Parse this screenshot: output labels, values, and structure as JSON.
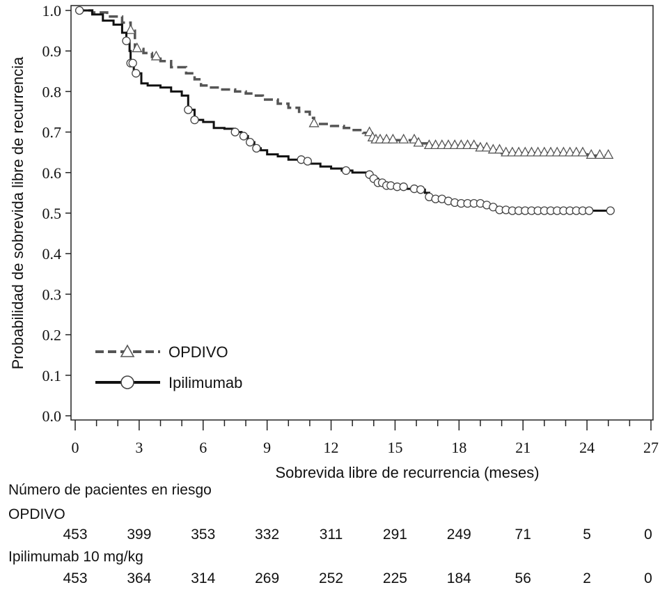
{
  "chart_data": {
    "type": "line",
    "xlabel": "Sobrevida libre de recurrencia (meses)",
    "ylabel": "Probabilidad de sobrevida libre de recurrencia",
    "xlim": [
      0,
      27
    ],
    "ylim": [
      0.0,
      1.0
    ],
    "x_ticks": [
      0,
      3,
      6,
      9,
      12,
      15,
      18,
      21,
      24,
      27
    ],
    "y_ticks": [
      "0.0",
      "0.1",
      "0.2",
      "0.3",
      "0.4",
      "0.5",
      "0.6",
      "0.7",
      "0.8",
      "0.9",
      "1.0"
    ],
    "grid": false,
    "legend_position": "bottom-left",
    "series": [
      {
        "name": "OPDIVO",
        "color": "#555555",
        "line_style": "dashed",
        "marker": "triangle",
        "steps": [
          [
            0,
            1.0
          ],
          [
            0.8,
            0.995
          ],
          [
            1.5,
            0.985
          ],
          [
            2.2,
            0.97
          ],
          [
            2.6,
            0.95
          ],
          [
            2.8,
            0.905
          ],
          [
            3.2,
            0.895
          ],
          [
            3.6,
            0.885
          ],
          [
            4.0,
            0.875
          ],
          [
            4.5,
            0.86
          ],
          [
            5.2,
            0.845
          ],
          [
            5.6,
            0.83
          ],
          [
            5.9,
            0.815
          ],
          [
            6.3,
            0.81
          ],
          [
            6.8,
            0.805
          ],
          [
            7.5,
            0.8
          ],
          [
            8.0,
            0.795
          ],
          [
            8.4,
            0.79
          ],
          [
            8.8,
            0.78
          ],
          [
            9.5,
            0.77
          ],
          [
            10.0,
            0.76
          ],
          [
            10.5,
            0.75
          ],
          [
            11.0,
            0.735
          ],
          [
            11.2,
            0.72
          ],
          [
            12.0,
            0.715
          ],
          [
            12.6,
            0.71
          ],
          [
            13.0,
            0.705
          ],
          [
            13.5,
            0.698
          ],
          [
            13.9,
            0.685
          ],
          [
            14.1,
            0.68
          ],
          [
            16.0,
            0.672
          ],
          [
            16.5,
            0.666
          ],
          [
            19.0,
            0.66
          ],
          [
            19.5,
            0.655
          ],
          [
            20.0,
            0.648
          ],
          [
            23.9,
            0.645
          ],
          [
            24.2,
            0.642
          ],
          [
            25.0,
            0.642
          ]
        ],
        "censored_x": [
          2.6,
          2.9,
          3.8,
          11.2,
          13.8,
          13.95,
          14.1,
          14.3,
          14.6,
          14.9,
          15.4,
          15.9,
          16.1,
          16.6,
          16.9,
          17.2,
          17.5,
          17.8,
          18.1,
          18.4,
          18.7,
          19.0,
          19.3,
          19.6,
          19.9,
          20.2,
          20.5,
          20.8,
          21.1,
          21.4,
          21.7,
          22.0,
          22.3,
          22.6,
          22.9,
          23.2,
          23.5,
          23.8,
          24.2,
          24.6,
          25.0
        ]
      },
      {
        "name": "Ipilimumab",
        "color": "#111111",
        "line_style": "solid",
        "marker": "circle",
        "steps": [
          [
            0,
            1.0
          ],
          [
            0.8,
            0.99
          ],
          [
            1.3,
            0.975
          ],
          [
            1.8,
            0.965
          ],
          [
            2.2,
            0.945
          ],
          [
            2.4,
            0.925
          ],
          [
            2.55,
            0.9
          ],
          [
            2.6,
            0.87
          ],
          [
            2.75,
            0.845
          ],
          [
            3.1,
            0.82
          ],
          [
            3.4,
            0.815
          ],
          [
            4.0,
            0.81
          ],
          [
            4.5,
            0.8
          ],
          [
            5.0,
            0.79
          ],
          [
            5.3,
            0.755
          ],
          [
            5.6,
            0.73
          ],
          [
            6.0,
            0.725
          ],
          [
            6.5,
            0.71
          ],
          [
            7.0,
            0.708
          ],
          [
            7.5,
            0.7
          ],
          [
            7.8,
            0.69
          ],
          [
            8.1,
            0.675
          ],
          [
            8.4,
            0.66
          ],
          [
            8.7,
            0.655
          ],
          [
            9.0,
            0.645
          ],
          [
            9.5,
            0.64
          ],
          [
            10.0,
            0.632
          ],
          [
            10.8,
            0.628
          ],
          [
            11.0,
            0.622
          ],
          [
            11.5,
            0.615
          ],
          [
            12.0,
            0.61
          ],
          [
            12.5,
            0.605
          ],
          [
            13.0,
            0.6
          ],
          [
            13.7,
            0.595
          ],
          [
            13.9,
            0.585
          ],
          [
            14.2,
            0.575
          ],
          [
            14.5,
            0.568
          ],
          [
            15.0,
            0.565
          ],
          [
            15.5,
            0.56
          ],
          [
            16.0,
            0.558
          ],
          [
            16.4,
            0.55
          ],
          [
            16.6,
            0.54
          ],
          [
            16.9,
            0.535
          ],
          [
            17.3,
            0.53
          ],
          [
            17.7,
            0.526
          ],
          [
            18.0,
            0.524
          ],
          [
            19.3,
            0.52
          ],
          [
            19.6,
            0.515
          ],
          [
            19.9,
            0.508
          ],
          [
            20.3,
            0.506
          ],
          [
            25.0,
            0.506
          ]
        ],
        "censored_x": [
          0.2,
          2.4,
          2.6,
          2.7,
          2.85,
          5.3,
          5.6,
          7.5,
          7.9,
          8.2,
          8.5,
          10.6,
          10.9,
          12.7,
          13.8,
          14.0,
          14.2,
          14.4,
          14.6,
          14.8,
          15.1,
          15.4,
          15.9,
          16.2,
          16.6,
          16.9,
          17.2,
          17.5,
          17.8,
          18.1,
          18.4,
          18.7,
          19.0,
          19.3,
          19.6,
          19.9,
          20.2,
          20.5,
          20.8,
          21.1,
          21.4,
          21.7,
          22.0,
          22.3,
          22.6,
          22.9,
          23.2,
          23.5,
          23.8,
          24.1,
          25.1
        ]
      }
    ]
  },
  "risk_table": {
    "title": "Número de pacientes en riesgo",
    "time_points": [
      0,
      3,
      6,
      9,
      12,
      15,
      18,
      21,
      24,
      27
    ],
    "rows": [
      {
        "label": "OPDIVO",
        "values": [
          "453",
          "399",
          "353",
          "332",
          "311",
          "291",
          "249",
          "71",
          "5",
          "0"
        ]
      },
      {
        "label": "Ipilimumab 10 mg/kg",
        "values": [
          "453",
          "364",
          "314",
          "269",
          "252",
          "225",
          "184",
          "56",
          "2",
          "0"
        ]
      }
    ]
  }
}
